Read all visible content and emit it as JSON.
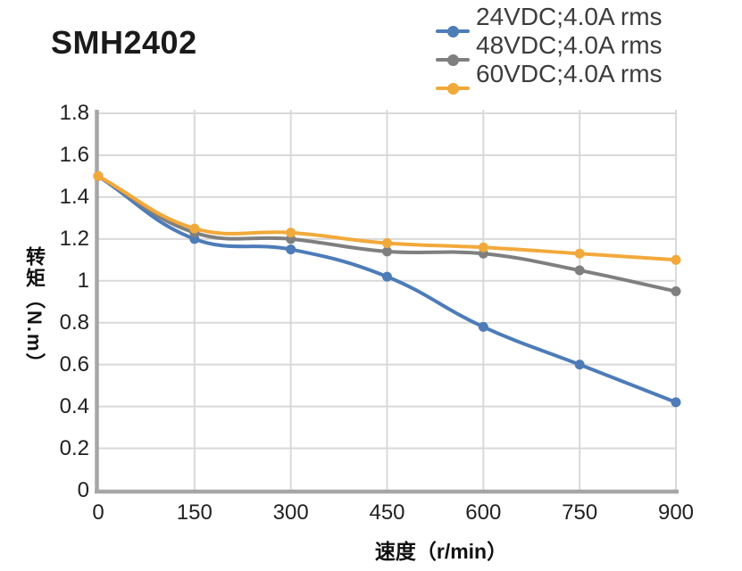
{
  "page": {
    "background": "#ffffff"
  },
  "chart_data": {
    "type": "line",
    "title": "SMH2402",
    "xlabel": "速度（r/min）",
    "ylabel": "转矩（N.m）",
    "x": [
      0,
      150,
      300,
      450,
      600,
      750,
      900
    ],
    "xlim": [
      0,
      900
    ],
    "ylim": [
      0,
      1.8
    ],
    "xticks": [
      0,
      150,
      300,
      450,
      600,
      750,
      900
    ],
    "xtick_labels": [
      "0",
      "150",
      "300",
      "450",
      "600",
      "750",
      "900"
    ],
    "yticks": [
      0,
      0.2,
      0.4,
      0.6,
      0.8,
      1,
      1.2,
      1.4,
      1.6,
      1.8
    ],
    "ytick_labels": [
      "0",
      "0.2",
      "0.4",
      "0.6",
      "0.8",
      "1",
      "1.2",
      "1.4",
      "1.6",
      "1.8"
    ],
    "grid": true,
    "legend_position": "top-right",
    "line_style": "smooth",
    "series": [
      {
        "name": "24VDC;4.0A rms",
        "color": "#4d7cb8",
        "values": [
          1.5,
          1.2,
          1.15,
          1.02,
          0.78,
          0.6,
          0.42
        ]
      },
      {
        "name": "48VDC;4.0A rms",
        "color": "#7f7f7f",
        "values": [
          1.5,
          1.23,
          1.2,
          1.14,
          1.13,
          1.05,
          0.95
        ]
      },
      {
        "name": "60VDC;4.0A rms",
        "color": "#f2a93b",
        "values": [
          1.5,
          1.25,
          1.23,
          1.18,
          1.16,
          1.13,
          1.1
        ]
      }
    ],
    "colors": {
      "grid": "#d9d9d9",
      "axis": "#a6a6a6",
      "tick_text": "#212121",
      "title_text": "#1a1a1a",
      "legend_text": "#3c3c3c"
    }
  }
}
